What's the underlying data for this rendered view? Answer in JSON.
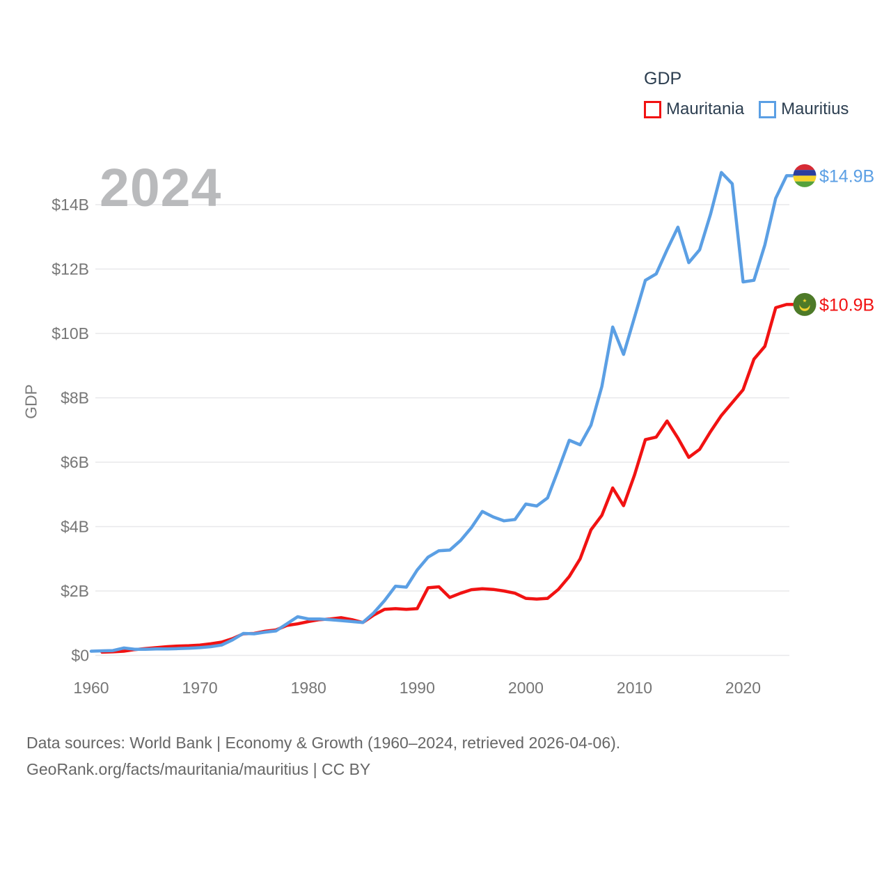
{
  "watermark": "2024",
  "legend": {
    "title": "GDP",
    "series": [
      {
        "label": "Mauritania",
        "color": "#f11212"
      },
      {
        "label": "Mauritius",
        "color": "#5b9fe4"
      }
    ]
  },
  "y_axis": {
    "title": "GDP",
    "ticks": [
      "$0",
      "$2B",
      "$4B",
      "$6B",
      "$8B",
      "$10B",
      "$12B",
      "$14B"
    ]
  },
  "x_axis": {
    "ticks": [
      "1960",
      "1970",
      "1980",
      "1990",
      "2000",
      "2010",
      "2020"
    ]
  },
  "end_labels": [
    {
      "series": "Mauritius",
      "text": "$14.9B"
    },
    {
      "series": "Mauritania",
      "text": "$10.9B"
    }
  ],
  "footer": {
    "line1": "Data sources: World Bank | Economy & Growth (1960–2024, retrieved 2026-04-06).",
    "line2": "GeoRank.org/facts/mauritania/mauritius | CC BY"
  },
  "chart_data": {
    "type": "line",
    "title": "GDP",
    "ylabel": "GDP",
    "xlim": [
      1960,
      2024
    ],
    "ylim": [
      0,
      15.5
    ],
    "unit": "billion USD",
    "grid": "horizontal",
    "legend_position": "top-right",
    "yticks_values": [
      0,
      2,
      4,
      6,
      8,
      10,
      12,
      14
    ],
    "xticks_values": [
      1960,
      1970,
      1980,
      1990,
      2000,
      2010,
      2020
    ],
    "series": [
      {
        "name": "Mauritania",
        "color": "#f11212",
        "start_year": 1961,
        "end_label": "$10.9B",
        "values": [
          0.1,
          0.11,
          0.13,
          0.18,
          0.21,
          0.24,
          0.27,
          0.29,
          0.3,
          0.32,
          0.36,
          0.41,
          0.52,
          0.67,
          0.68,
          0.75,
          0.79,
          0.93,
          0.98,
          1.05,
          1.11,
          1.13,
          1.17,
          1.11,
          1.02,
          1.25,
          1.43,
          1.45,
          1.43,
          1.45,
          2.1,
          2.13,
          1.8,
          1.93,
          2.04,
          2.07,
          2.05,
          2.0,
          1.93,
          1.77,
          1.75,
          1.77,
          2.05,
          2.45,
          3.0,
          3.9,
          4.35,
          5.2,
          4.65,
          5.6,
          6.7,
          6.78,
          7.28,
          6.75,
          6.15,
          6.4,
          6.95,
          7.45,
          7.85,
          8.25,
          9.2,
          9.6,
          10.8,
          10.9
        ]
      },
      {
        "name": "Mauritius",
        "color": "#5b9fe4",
        "start_year": 1960,
        "end_label": "$14.9B",
        "values": [
          0.13,
          0.14,
          0.15,
          0.23,
          0.19,
          0.19,
          0.2,
          0.2,
          0.21,
          0.22,
          0.24,
          0.27,
          0.32,
          0.48,
          0.68,
          0.67,
          0.72,
          0.76,
          0.98,
          1.2,
          1.13,
          1.13,
          1.11,
          1.08,
          1.05,
          1.02,
          1.32,
          1.7,
          2.15,
          2.12,
          2.65,
          3.05,
          3.25,
          3.27,
          3.57,
          3.97,
          4.47,
          4.3,
          4.18,
          4.22,
          4.7,
          4.64,
          4.89,
          5.77,
          6.68,
          6.54,
          7.15,
          8.35,
          10.2,
          9.35,
          10.5,
          11.65,
          11.85,
          12.6,
          13.3,
          12.2,
          12.6,
          13.7,
          15.0,
          14.65,
          11.6,
          11.65,
          12.75,
          14.2,
          14.9
        ]
      }
    ]
  }
}
